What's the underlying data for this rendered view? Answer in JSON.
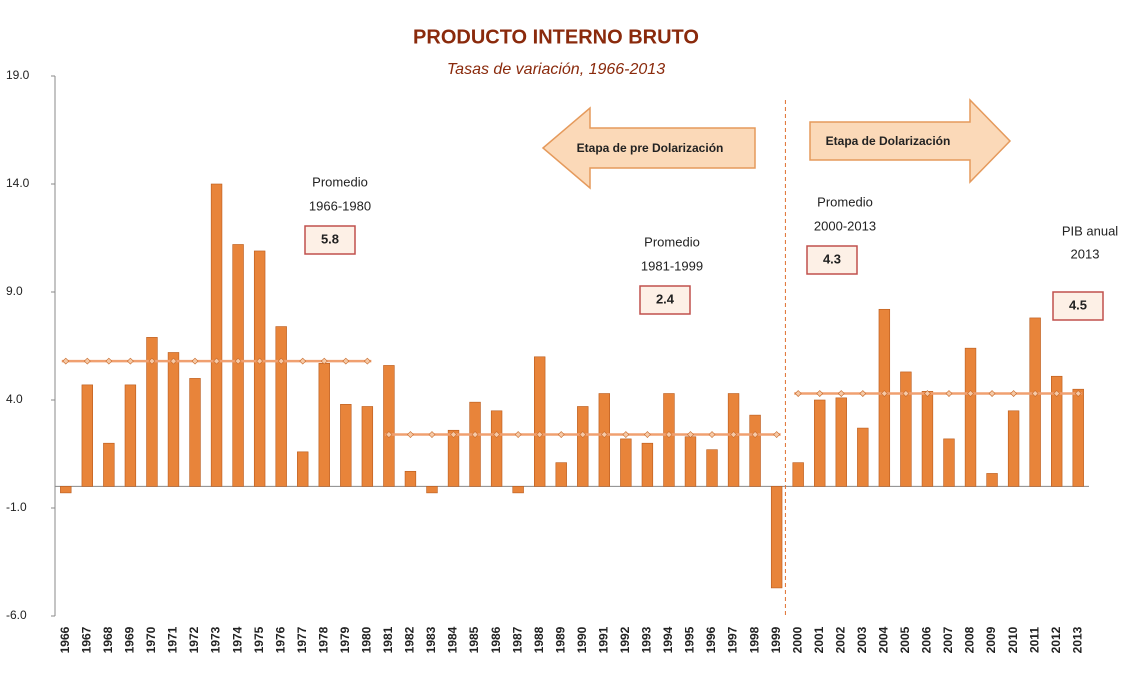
{
  "chart_data": {
    "type": "bar",
    "title": "PRODUCTO INTERNO BRUTO",
    "subtitle": "Tasas de variación, 1966-2013",
    "categories": [
      "1966",
      "1967",
      "1968",
      "1969",
      "1970",
      "1971",
      "1972",
      "1973",
      "1974",
      "1975",
      "1976",
      "1977",
      "1978",
      "1979",
      "1980",
      "1981",
      "1982",
      "1983",
      "1984",
      "1985",
      "1986",
      "1987",
      "1988",
      "1989",
      "1990",
      "1991",
      "1992",
      "1993",
      "1994",
      "1995",
      "1996",
      "1997",
      "1998",
      "1999",
      "2000",
      "2001",
      "2002",
      "2003",
      "2004",
      "2005",
      "2006",
      "2007",
      "2008",
      "2009",
      "2010",
      "2011",
      "2012",
      "2013"
    ],
    "values": [
      -0.3,
      4.7,
      2.0,
      4.7,
      6.9,
      6.2,
      5.0,
      14.0,
      11.2,
      10.9,
      7.4,
      1.6,
      5.7,
      3.8,
      3.7,
      5.6,
      0.7,
      -0.3,
      2.6,
      3.9,
      3.5,
      -0.3,
      6.0,
      1.1,
      3.7,
      4.3,
      2.2,
      2.0,
      4.3,
      2.3,
      1.7,
      4.3,
      3.3,
      -4.7,
      1.1,
      4.0,
      4.1,
      2.7,
      8.2,
      5.3,
      4.4,
      2.2,
      6.4,
      0.6,
      3.5,
      7.8,
      5.1,
      4.5
    ],
    "color": "#e8843a",
    "ylim": [
      -6,
      19
    ],
    "yticks": [
      {
        "value": -6,
        "label": "-6.0"
      },
      {
        "value": -1,
        "label": "-1.0"
      },
      {
        "value": 4,
        "label": "4.0"
      },
      {
        "value": 9,
        "label": "9.0"
      },
      {
        "value": 14,
        "label": "14.0"
      },
      {
        "value": 19,
        "label": "19.0"
      }
    ],
    "averages": [
      {
        "label": "Promedio",
        "period": "1966-1980",
        "value": 5.8,
        "from": "1966",
        "to": "1980"
      },
      {
        "label": "Promedio",
        "period": "1981-1999",
        "value": 2.4,
        "from": "1981",
        "to": "1999"
      },
      {
        "label": "Promedio",
        "period": "2000-2013",
        "value": 4.3,
        "from": "2000",
        "to": "2013"
      }
    ],
    "average_color": "#f0a070",
    "annual": {
      "label": "PIB anual",
      "period": "2013",
      "value": 4.5
    },
    "stages": [
      "Etapa de pre Dolarización",
      "Etapa de  Dolarización"
    ]
  }
}
